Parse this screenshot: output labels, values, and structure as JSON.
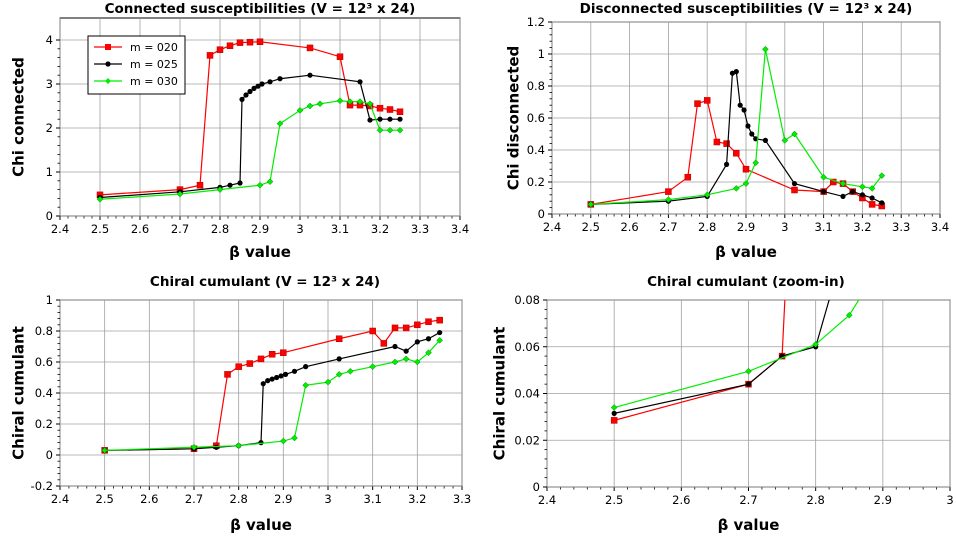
{
  "chart_data": [
    {
      "type": "line",
      "title": "Connected susceptibilities (V = 12³ x 24)",
      "xlabel": "β value",
      "ylabel": "Chi connected",
      "xlim": [
        2.4,
        3.4
      ],
      "ylim": [
        0,
        4.5
      ],
      "xticks": [
        "2.4",
        "2.5",
        "2.6",
        "2.7",
        "2.8",
        "2.9",
        "3",
        "3.1",
        "3.2",
        "3.3",
        "3.4"
      ],
      "yticks": [
        "0",
        "1",
        "2",
        "3",
        "4"
      ],
      "grid": true,
      "legend": "top-left",
      "series": [
        {
          "name": "m = 020",
          "color": "#ff0000",
          "marker": "square",
          "points": [
            [
              2.5,
              0.48
            ],
            [
              2.7,
              0.6
            ],
            [
              2.75,
              0.7
            ],
            [
              2.775,
              3.65
            ],
            [
              2.8,
              3.78
            ],
            [
              2.825,
              3.87
            ],
            [
              2.85,
              3.94
            ],
            [
              2.875,
              3.95
            ],
            [
              2.9,
              3.96
            ],
            [
              3.025,
              3.82
            ],
            [
              3.1,
              3.62
            ],
            [
              3.125,
              2.52
            ],
            [
              3.15,
              2.52
            ],
            [
              3.175,
              2.5
            ],
            [
              3.2,
              2.45
            ],
            [
              3.225,
              2.42
            ],
            [
              3.25,
              2.37
            ]
          ]
        },
        {
          "name": "m = 025",
          "color": "#000000",
          "marker": "circle",
          "points": [
            [
              2.5,
              0.42
            ],
            [
              2.7,
              0.55
            ],
            [
              2.8,
              0.65
            ],
            [
              2.825,
              0.7
            ],
            [
              2.85,
              0.75
            ],
            [
              2.855,
              2.65
            ],
            [
              2.865,
              2.75
            ],
            [
              2.875,
              2.83
            ],
            [
              2.885,
              2.9
            ],
            [
              2.895,
              2.95
            ],
            [
              2.905,
              3.0
            ],
            [
              2.925,
              3.05
            ],
            [
              2.95,
              3.12
            ],
            [
              3.025,
              3.2
            ],
            [
              3.15,
              3.05
            ],
            [
              3.175,
              2.18
            ],
            [
              3.2,
              2.2
            ],
            [
              3.225,
              2.2
            ],
            [
              3.25,
              2.2
            ]
          ]
        },
        {
          "name": "m = 030",
          "color": "#00ee00",
          "marker": "diamond",
          "points": [
            [
              2.5,
              0.38
            ],
            [
              2.7,
              0.5
            ],
            [
              2.8,
              0.6
            ],
            [
              2.9,
              0.7
            ],
            [
              2.925,
              0.78
            ],
            [
              2.95,
              2.1
            ],
            [
              3.0,
              2.4
            ],
            [
              3.025,
              2.5
            ],
            [
              3.05,
              2.55
            ],
            [
              3.1,
              2.62
            ],
            [
              3.125,
              2.6
            ],
            [
              3.15,
              2.6
            ],
            [
              3.175,
              2.55
            ],
            [
              3.2,
              1.95
            ],
            [
              3.225,
              1.95
            ],
            [
              3.25,
              1.95
            ]
          ]
        }
      ]
    },
    {
      "type": "line",
      "title": "Disconnected susceptibilities (V = 12³ x 24)",
      "xlabel": "β value",
      "ylabel": "Chi disconnected",
      "xlim": [
        2.4,
        3.4
      ],
      "ylim": [
        0,
        1.2
      ],
      "xticks": [
        "2.4",
        "2.5",
        "2.6",
        "2.7",
        "2.8",
        "2.9",
        "3",
        "3.1",
        "3.2",
        "3.3",
        "3.4"
      ],
      "yticks": [
        "0",
        "0.2",
        "0.4",
        "0.6",
        "0.8",
        "1",
        "1.2"
      ],
      "grid": true,
      "series": [
        {
          "name": "m = 020",
          "color": "#ff0000",
          "marker": "square",
          "points": [
            [
              2.5,
              0.06
            ],
            [
              2.7,
              0.14
            ],
            [
              2.75,
              0.23
            ],
            [
              2.775,
              0.69
            ],
            [
              2.8,
              0.71
            ],
            [
              2.825,
              0.45
            ],
            [
              2.85,
              0.44
            ],
            [
              2.875,
              0.38
            ],
            [
              2.9,
              0.28
            ],
            [
              3.025,
              0.15
            ],
            [
              3.1,
              0.14
            ],
            [
              3.125,
              0.2
            ],
            [
              3.15,
              0.19
            ],
            [
              3.175,
              0.14
            ],
            [
              3.2,
              0.1
            ],
            [
              3.225,
              0.06
            ],
            [
              3.25,
              0.05
            ]
          ]
        },
        {
          "name": "m = 025",
          "color": "#000000",
          "marker": "circle",
          "points": [
            [
              2.5,
              0.06
            ],
            [
              2.7,
              0.08
            ],
            [
              2.8,
              0.11
            ],
            [
              2.85,
              0.31
            ],
            [
              2.865,
              0.88
            ],
            [
              2.875,
              0.89
            ],
            [
              2.885,
              0.68
            ],
            [
              2.895,
              0.65
            ],
            [
              2.905,
              0.55
            ],
            [
              2.915,
              0.5
            ],
            [
              2.925,
              0.47
            ],
            [
              2.95,
              0.46
            ],
            [
              3.025,
              0.19
            ],
            [
              3.1,
              0.14
            ],
            [
              3.15,
              0.11
            ],
            [
              3.175,
              0.14
            ],
            [
              3.2,
              0.12
            ],
            [
              3.225,
              0.1
            ],
            [
              3.25,
              0.07
            ]
          ]
        },
        {
          "name": "m = 030",
          "color": "#00ee00",
          "marker": "diamond",
          "points": [
            [
              2.5,
              0.06
            ],
            [
              2.7,
              0.09
            ],
            [
              2.8,
              0.12
            ],
            [
              2.875,
              0.16
            ],
            [
              2.9,
              0.19
            ],
            [
              2.925,
              0.32
            ],
            [
              2.95,
              1.03
            ],
            [
              3.0,
              0.46
            ],
            [
              3.025,
              0.5
            ],
            [
              3.1,
              0.23
            ],
            [
              3.15,
              0.19
            ],
            [
              3.2,
              0.17
            ],
            [
              3.225,
              0.16
            ],
            [
              3.25,
              0.24
            ]
          ]
        }
      ]
    },
    {
      "type": "line",
      "title": "Chiral cumulant (V = 12³ x 24)",
      "xlabel": "β value",
      "ylabel": "Chiral cumulant",
      "xlim": [
        2.4,
        3.3
      ],
      "ylim": [
        -0.2,
        1
      ],
      "xticks": [
        "2.4",
        "2.5",
        "2.6",
        "2.7",
        "2.8",
        "2.9",
        "3",
        "3.1",
        "3.2",
        "3.3"
      ],
      "yticks": [
        "-0.2",
        "0",
        "0.2",
        "0.4",
        "0.6",
        "0.8",
        "1"
      ],
      "grid": true,
      "series": [
        {
          "name": "m = 020",
          "color": "#ff0000",
          "marker": "square",
          "points": [
            [
              2.5,
              0.03
            ],
            [
              2.7,
              0.04
            ],
            [
              2.75,
              0.06
            ],
            [
              2.775,
              0.52
            ],
            [
              2.8,
              0.57
            ],
            [
              2.825,
              0.59
            ],
            [
              2.85,
              0.62
            ],
            [
              2.875,
              0.65
            ],
            [
              2.9,
              0.66
            ],
            [
              3.025,
              0.75
            ],
            [
              3.1,
              0.8
            ],
            [
              3.125,
              0.72
            ],
            [
              3.15,
              0.82
            ],
            [
              3.175,
              0.82
            ],
            [
              3.2,
              0.84
            ],
            [
              3.225,
              0.86
            ],
            [
              3.25,
              0.87
            ]
          ]
        },
        {
          "name": "m = 025",
          "color": "#000000",
          "marker": "circle",
          "points": [
            [
              2.5,
              0.03
            ],
            [
              2.7,
              0.04
            ],
            [
              2.75,
              0.05
            ],
            [
              2.8,
              0.06
            ],
            [
              2.85,
              0.08
            ],
            [
              2.855,
              0.46
            ],
            [
              2.865,
              0.48
            ],
            [
              2.875,
              0.49
            ],
            [
              2.885,
              0.5
            ],
            [
              2.895,
              0.51
            ],
            [
              2.905,
              0.52
            ],
            [
              2.925,
              0.54
            ],
            [
              2.95,
              0.57
            ],
            [
              3.025,
              0.62
            ],
            [
              3.15,
              0.7
            ],
            [
              3.175,
              0.67
            ],
            [
              3.2,
              0.73
            ],
            [
              3.225,
              0.75
            ],
            [
              3.25,
              0.79
            ]
          ]
        },
        {
          "name": "m = 030",
          "color": "#00ee00",
          "marker": "diamond",
          "points": [
            [
              2.5,
              0.03
            ],
            [
              2.7,
              0.05
            ],
            [
              2.8,
              0.06
            ],
            [
              2.9,
              0.09
            ],
            [
              2.925,
              0.11
            ],
            [
              2.95,
              0.45
            ],
            [
              3.0,
              0.47
            ],
            [
              3.025,
              0.52
            ],
            [
              3.05,
              0.54
            ],
            [
              3.1,
              0.57
            ],
            [
              3.15,
              0.6
            ],
            [
              3.175,
              0.62
            ],
            [
              3.2,
              0.6
            ],
            [
              3.225,
              0.66
            ],
            [
              3.25,
              0.74
            ]
          ]
        }
      ]
    },
    {
      "type": "line",
      "title": "Chiral cumulant (zoom-in)",
      "xlabel": "β value",
      "ylabel": "Chiral cumulant",
      "xlim": [
        2.4,
        3.0
      ],
      "ylim": [
        0,
        0.08
      ],
      "xticks": [
        "2.4",
        "2.5",
        "2.6",
        "2.7",
        "2.8",
        "2.9",
        "3"
      ],
      "yticks": [
        "0",
        "0.02",
        "0.04",
        "0.06",
        "0.08"
      ],
      "grid": true,
      "series": [
        {
          "name": "m = 020",
          "color": "#ff0000",
          "marker": "square",
          "points": [
            [
              2.5,
              0.0285
            ],
            [
              2.7,
              0.044
            ],
            [
              2.75,
              0.056
            ],
            [
              2.755,
              0.085
            ]
          ]
        },
        {
          "name": "m = 025",
          "color": "#000000",
          "marker": "circle",
          "points": [
            [
              2.5,
              0.0315
            ],
            [
              2.7,
              0.044
            ],
            [
              2.75,
              0.056
            ],
            [
              2.8,
              0.06
            ],
            [
              2.825,
              0.085
            ]
          ]
        },
        {
          "name": "m = 030",
          "color": "#00ee00",
          "marker": "diamond",
          "points": [
            [
              2.5,
              0.034
            ],
            [
              2.7,
              0.0495
            ],
            [
              2.8,
              0.061
            ],
            [
              2.85,
              0.0735
            ],
            [
              2.875,
              0.085
            ]
          ]
        }
      ]
    }
  ]
}
